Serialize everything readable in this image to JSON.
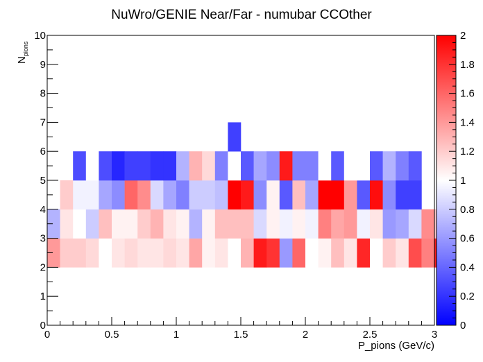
{
  "chart_data": {
    "type": "heatmap",
    "title": "NuWro/GENIE Near/Far - numubar CCOther",
    "xlabel": "P_pions (GeV/c)",
    "ylabel": {
      "main": "N",
      "sub": "pions"
    },
    "xlim": [
      0,
      3
    ],
    "ylim": [
      0,
      10
    ],
    "x_ticks": [
      "0",
      "0.5",
      "1",
      "1.5",
      "2",
      "2.5",
      "3"
    ],
    "y_ticks": [
      "0",
      "1",
      "2",
      "3",
      "4",
      "5",
      "6",
      "7",
      "8",
      "9",
      "10"
    ],
    "z_range": [
      0,
      2
    ],
    "z_ticks": [
      "0",
      "0.2",
      "0.4",
      "0.6",
      "0.8",
      "1",
      "1.2",
      "1.4",
      "1.6",
      "1.8",
      "2"
    ],
    "colormap": [
      {
        "v": 0,
        "color": "#0000ff"
      },
      {
        "v": 1,
        "color": "#ffffff"
      },
      {
        "v": 2,
        "color": "#ff0000"
      }
    ],
    "x_bin_width": 0.1,
    "y_bin_width": 1,
    "rows": [
      {
        "y": 2,
        "values": [
          1.4,
          1.2,
          1.2,
          1.15,
          1.0,
          1.1,
          1.15,
          1.1,
          1.1,
          1.15,
          1.1,
          1.35,
          1.05,
          1.1,
          1.0,
          1.3,
          1.9,
          1.8,
          0.6,
          1.6,
          1.0,
          1.05,
          1.25,
          1.1,
          1.85,
          1.0,
          1.2,
          1.1,
          1.7,
          1.5,
          1.9
        ]
      },
      {
        "y": 3,
        "values": [
          0.7,
          1.1,
          1.0,
          0.8,
          1.25,
          1.05,
          1.05,
          1.2,
          1.3,
          1.1,
          1.05,
          0.7,
          1.05,
          1.25,
          1.25,
          1.25,
          0.85,
          1.05,
          0.95,
          1.05,
          0.95,
          1.5,
          1.35,
          1.4,
          0.95,
          1.1,
          0.6,
          0.65,
          0.85,
          1.45,
          1.2
        ]
      },
      {
        "y": 4,
        "values": [
          null,
          1.2,
          0.95,
          0.95,
          0.65,
          0.55,
          1.6,
          1.45,
          0.85,
          0.65,
          0.5,
          0.8,
          0.8,
          0.75,
          2.0,
          1.9,
          0.55,
          1.05,
          0.35,
          1.25,
          0.65,
          2.0,
          2.0,
          1.4,
          0.35,
          1.95,
          0.55,
          0.25,
          0.25,
          null,
          null
        ]
      },
      {
        "y": 5,
        "values": [
          null,
          null,
          0.3,
          1.0,
          0.3,
          0.15,
          0.25,
          0.25,
          0.2,
          0.2,
          0.7,
          1.3,
          1.15,
          0.5,
          1.0,
          0.35,
          0.65,
          0.55,
          1.9,
          0.5,
          0.5,
          1.0,
          0.35,
          1.0,
          1.0,
          0.35,
          0.7,
          0.5,
          0.35,
          null,
          null
        ]
      },
      {
        "y": 6,
        "values": [
          null,
          null,
          null,
          null,
          null,
          null,
          null,
          null,
          null,
          null,
          null,
          null,
          null,
          null,
          0.25,
          null,
          null,
          null,
          null,
          null,
          null,
          null,
          null,
          null,
          null,
          null,
          null,
          null,
          null,
          null,
          null
        ]
      }
    ]
  }
}
